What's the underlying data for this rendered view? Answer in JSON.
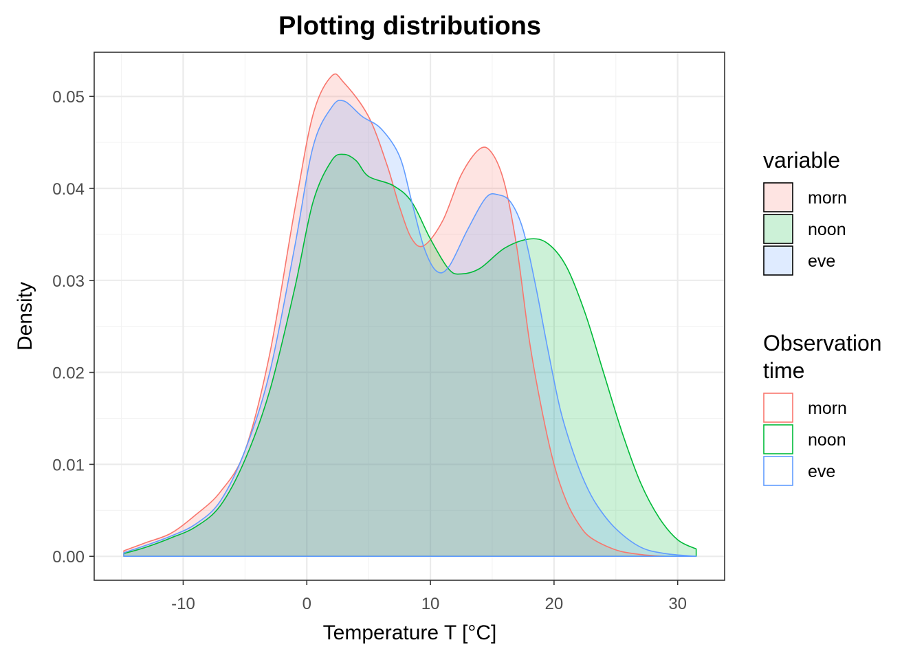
{
  "chart_data": {
    "type": "area",
    "title": "Plotting distributions",
    "xlabel": "Temperature T [°C]",
    "ylabel": "Density",
    "xlim": [
      -17.2,
      33.8
    ],
    "ylim": [
      -0.0026,
      0.0548
    ],
    "x_ticks": [
      -10,
      0,
      10,
      20,
      30
    ],
    "x_tick_labels": [
      "-10",
      "0",
      "10",
      "20",
      "30"
    ],
    "y_ticks": [
      0.0,
      0.01,
      0.02,
      0.03,
      0.04,
      0.05
    ],
    "y_tick_labels": [
      "0.00",
      "0.01",
      "0.02",
      "0.03",
      "0.04",
      "0.05"
    ],
    "grid": true,
    "legend_position": "right",
    "legends": [
      {
        "title_lines": [
          "variable"
        ],
        "kind": "fill",
        "entries": [
          "morn",
          "noon",
          "eve"
        ]
      },
      {
        "title_lines": [
          "Observation",
          "time"
        ],
        "kind": "line",
        "entries": [
          "morn",
          "noon",
          "eve"
        ]
      }
    ],
    "series": [
      {
        "name": "morn",
        "color": "#F8766D",
        "points": [
          [
            -14.8,
            0.0006
          ],
          [
            -13,
            0.0015
          ],
          [
            -11,
            0.0025
          ],
          [
            -9,
            0.0045
          ],
          [
            -7,
            0.007
          ],
          [
            -5,
            0.0115
          ],
          [
            -3,
            0.022
          ],
          [
            -1,
            0.0375
          ],
          [
            0.5,
            0.048
          ],
          [
            2,
            0.0522
          ],
          [
            3,
            0.0515
          ],
          [
            5,
            0.0478
          ],
          [
            6.5,
            0.0425
          ],
          [
            7.5,
            0.038
          ],
          [
            8.5,
            0.0345
          ],
          [
            9.5,
            0.0338
          ],
          [
            11,
            0.0365
          ],
          [
            12.5,
            0.0415
          ],
          [
            14,
            0.0443
          ],
          [
            15,
            0.0438
          ],
          [
            16,
            0.0405
          ],
          [
            17,
            0.0335
          ],
          [
            18,
            0.0235
          ],
          [
            19,
            0.016
          ],
          [
            20,
            0.01
          ],
          [
            21,
            0.006
          ],
          [
            22,
            0.0035
          ],
          [
            23,
            0.002
          ],
          [
            25,
            0.0007
          ],
          [
            27,
            0.0002
          ],
          [
            29,
            0.0
          ]
        ]
      },
      {
        "name": "noon",
        "color": "#00BA38",
        "points": [
          [
            -14.8,
            0.0003
          ],
          [
            -13,
            0.001
          ],
          [
            -11,
            0.002
          ],
          [
            -9,
            0.0032
          ],
          [
            -7,
            0.0055
          ],
          [
            -5,
            0.0105
          ],
          [
            -3,
            0.018
          ],
          [
            -1,
            0.029
          ],
          [
            0.5,
            0.0385
          ],
          [
            2,
            0.043
          ],
          [
            3,
            0.0437
          ],
          [
            4,
            0.043
          ],
          [
            5,
            0.0413
          ],
          [
            7,
            0.0403
          ],
          [
            8.5,
            0.0385
          ],
          [
            10,
            0.0345
          ],
          [
            11.5,
            0.0312
          ],
          [
            12.5,
            0.0307
          ],
          [
            14,
            0.0313
          ],
          [
            16,
            0.0335
          ],
          [
            18,
            0.0345
          ],
          [
            19.5,
            0.034
          ],
          [
            21,
            0.0315
          ],
          [
            22.5,
            0.0265
          ],
          [
            24,
            0.02
          ],
          [
            25.5,
            0.0135
          ],
          [
            27,
            0.008
          ],
          [
            28.5,
            0.0042
          ],
          [
            30,
            0.0018
          ],
          [
            31.5,
            0.0008
          ]
        ]
      },
      {
        "name": "eve",
        "color": "#619CFF",
        "points": [
          [
            -14.8,
            0.0004
          ],
          [
            -13,
            0.0012
          ],
          [
            -11,
            0.0022
          ],
          [
            -9,
            0.0035
          ],
          [
            -7,
            0.006
          ],
          [
            -5,
            0.0115
          ],
          [
            -3,
            0.02
          ],
          [
            -1,
            0.0335
          ],
          [
            0.5,
            0.0445
          ],
          [
            2,
            0.0488
          ],
          [
            3,
            0.0495
          ],
          [
            4.5,
            0.0478
          ],
          [
            6,
            0.0465
          ],
          [
            7.5,
            0.0435
          ],
          [
            8.5,
            0.0385
          ],
          [
            9.5,
            0.0335
          ],
          [
            10.5,
            0.031
          ],
          [
            11.5,
            0.0315
          ],
          [
            13,
            0.0355
          ],
          [
            14.5,
            0.039
          ],
          [
            15.5,
            0.0393
          ],
          [
            16.5,
            0.0385
          ],
          [
            17.5,
            0.0355
          ],
          [
            18.5,
            0.0295
          ],
          [
            19.5,
            0.0225
          ],
          [
            20.5,
            0.016
          ],
          [
            21.5,
            0.0115
          ],
          [
            22.5,
            0.008
          ],
          [
            23.5,
            0.0055
          ],
          [
            25,
            0.003
          ],
          [
            27,
            0.001
          ],
          [
            29,
            0.0003
          ],
          [
            31.5,
            0.0
          ]
        ]
      }
    ]
  }
}
